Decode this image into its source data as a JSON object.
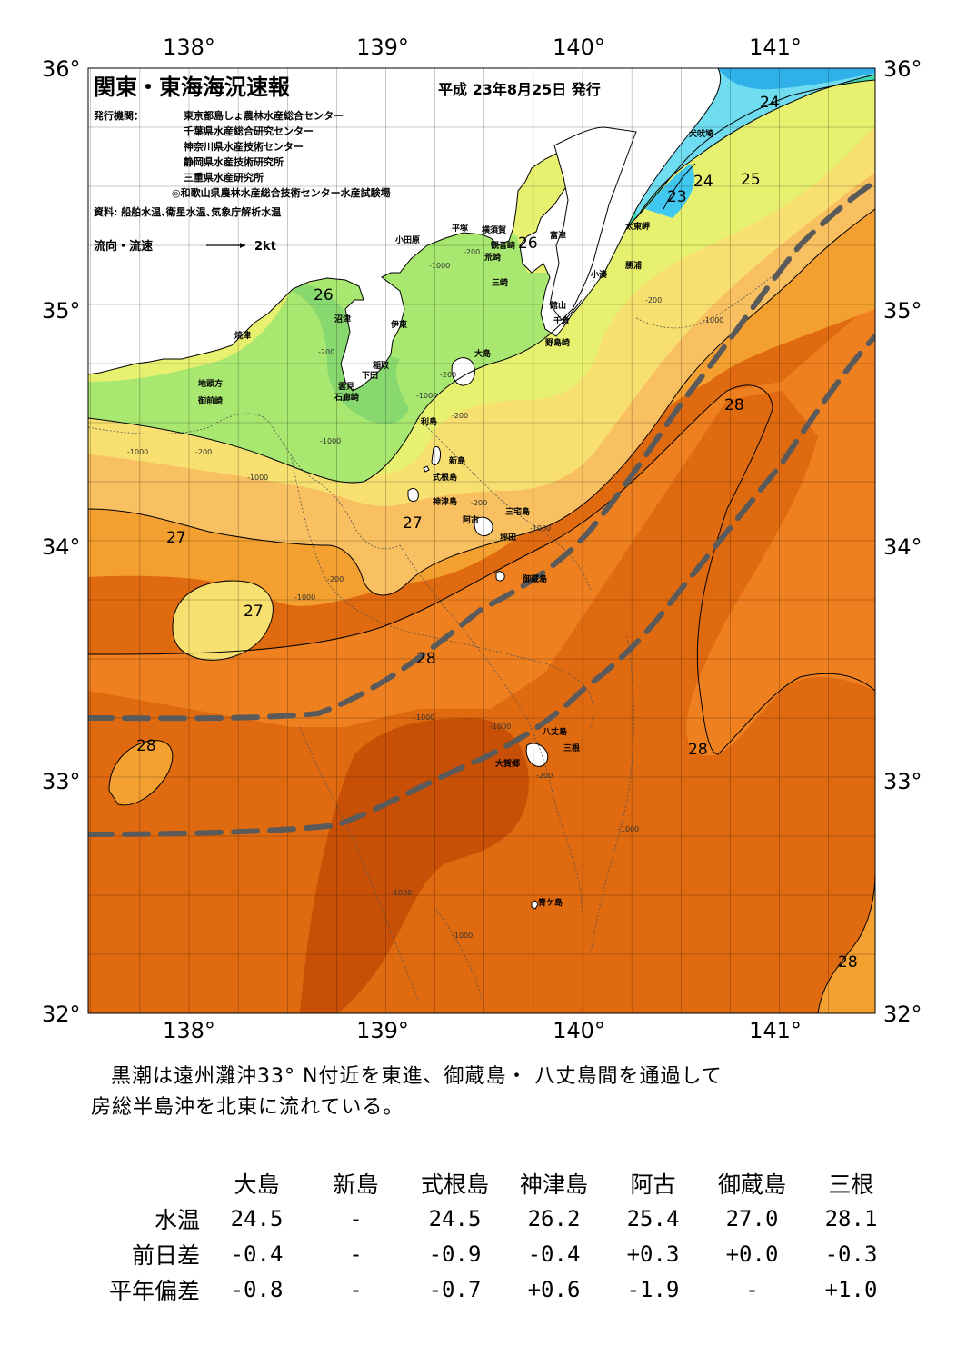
{
  "map": {
    "title": "関東・東海海況速報",
    "issue_date": "平成 23年8月25日 発行",
    "publisher_label": "発行機関：",
    "publishers": [
      "東京都島しょ農林水産総合センター",
      "千葉県水産総合研究センター",
      "神奈川県水産技術センター",
      "静岡県水産技術研究所",
      "三重県水産研究所",
      "◎和歌山県農林水産総合技術センター水産試験場"
    ],
    "source_note": "資料: 船舶水温､衛星水温､気象庁解析水温",
    "flow_legend_label": "流向・流速",
    "flow_legend_value": "2kt",
    "lon_ticks": [
      "138°",
      "139°",
      "140°",
      "141°"
    ],
    "lat_ticks": [
      "36°",
      "35°",
      "34°",
      "33°",
      "32°"
    ],
    "colors": {
      "c22": "#30b0e8",
      "c23": "#40c8f0",
      "c24": "#70dcf0",
      "c25": "#40d8b0",
      "c26": "#a8e870",
      "c26b": "#88d870",
      "c26_5": "#e8f070",
      "c27": "#f8e070",
      "c27_5": "#f8c060",
      "c28": "#f4a030",
      "c28_5": "#ee8020",
      "c29": "#e06a10",
      "c29_5": "#c85006",
      "kuroshio": "#5a5a5a",
      "land": "#ffffff"
    },
    "place_names": {
      "inubozaki": "犬吠埼",
      "taitomisaki": "太東岬",
      "katsuura": "勝浦",
      "kominato": "小湊",
      "futtsu": "富津",
      "kannonzaki": "観音崎",
      "yokosuka": "横須賀",
      "hiratsuka": "平塚",
      "odawara": "小田原",
      "araki": "荒崎",
      "misaki": "三崎",
      "tateyama": "館山",
      "chikura": "千倉",
      "nojimazaki": "野島崎",
      "numazu": "沼津",
      "ito": "伊東",
      "yaizu": "焼津",
      "jitokata": "地頭方",
      "omaezaki": "御前崎",
      "inatori": "稲取",
      "shimoda": "下田",
      "kumomi": "雲見",
      "irozaki": "石廊崎",
      "oshima": "大島",
      "toshima": "利島",
      "niijima": "新島",
      "shikinejima": "式根島",
      "kozushima": "神津島",
      "ako": "阿古",
      "miyakejima": "三宅島",
      "tsubota": "坪田",
      "mikurajima": "御蔵島",
      "hachijojima": "八丈島",
      "mine": "三根",
      "okago": "大賀郷",
      "aogashima": "青ケ島"
    },
    "isotherm_labels": [
      "24",
      "24",
      "23",
      "24",
      "25",
      "26",
      "26",
      "27",
      "27",
      "27",
      "28",
      "28",
      "28",
      "28",
      "28"
    ],
    "depth_labels": [
      "-1000",
      "-200"
    ]
  },
  "summary": {
    "line1": "黒潮は遠州灘沖33° N付近を東進、御蔵島・ 八丈島間を通過して",
    "line2": "房総半島沖を北東に流れている。"
  },
  "table": {
    "stations": [
      "大島",
      "新島",
      "式根島",
      "神津島",
      "阿古",
      "御蔵島",
      "三根"
    ],
    "rows": [
      {
        "label": "水温",
        "values": [
          "24.5",
          "-",
          "24.5",
          "26.2",
          "25.4",
          "27.0",
          "28.1"
        ]
      },
      {
        "label": "前日差",
        "values": [
          "-0.4",
          "-",
          "-0.9",
          "-0.4",
          "+0.3",
          "+0.0",
          "-0.3"
        ]
      },
      {
        "label": "平年偏差",
        "values": [
          "-0.8",
          "-",
          "-0.7",
          "+0.6",
          "-1.9",
          "-",
          "+1.0"
        ]
      }
    ]
  }
}
